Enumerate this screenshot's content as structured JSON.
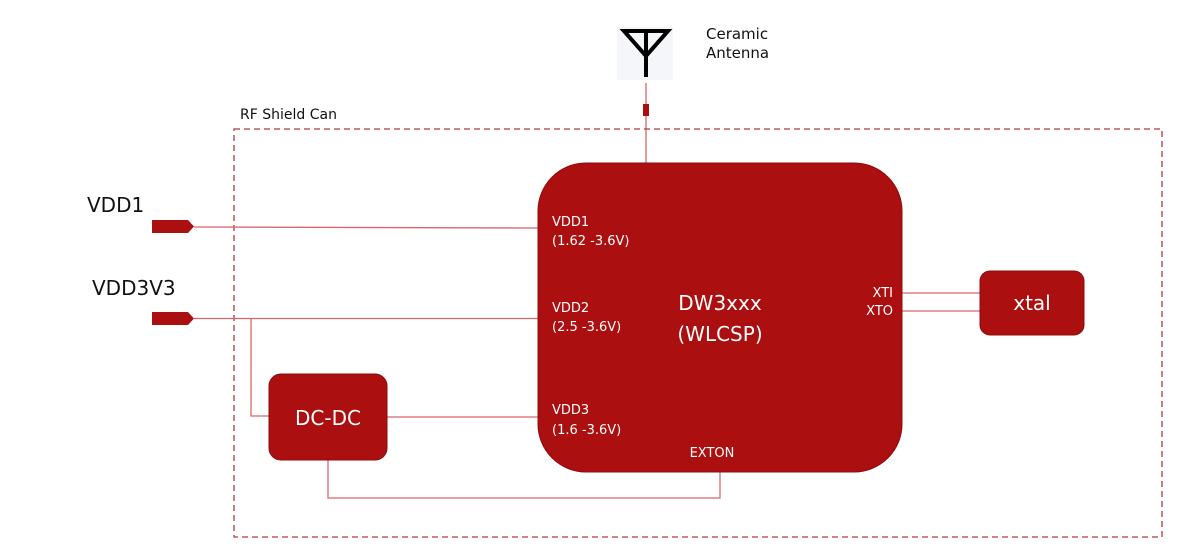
{
  "antenna": {
    "label_line1": "Ceramic",
    "label_line2": "Antenna",
    "icon": "antenna-icon"
  },
  "shield": {
    "label": "RF Shield Can",
    "color": "#b23a3f"
  },
  "inputs": {
    "vdd1": "VDD1",
    "vdd3v3": "VDD3V3"
  },
  "chip": {
    "name": "DW3xxx",
    "package": "(WLCSP)",
    "pins": {
      "vdd1": "VDD1",
      "vdd1_range": "(1.62 -3.6V)",
      "vdd2": "VDD2",
      "vdd2_range": "(2.5 -3.6V)",
      "vdd3": "VDD3",
      "vdd3_range": "(1.6 -3.6V)",
      "exton": "EXTON",
      "xti": "XTI",
      "xto": "XTO"
    }
  },
  "dcdc": {
    "label": "DC-DC"
  },
  "xtal": {
    "label": "xtal"
  },
  "colors": {
    "block": "#ac0f10",
    "wire": "#d9666b",
    "text": "#111111"
  }
}
